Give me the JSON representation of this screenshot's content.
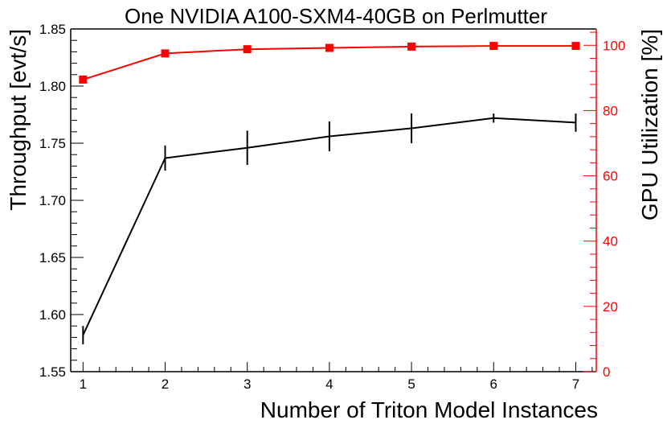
{
  "colors": {
    "throughput": "#000000",
    "gpu_util": "#ff0000",
    "frame": "#000000",
    "background": "#ffffff"
  },
  "chart_data": {
    "type": "line",
    "title": "One NVIDIA A100-SXM4-40GB on Perlmutter",
    "xlabel": "Number of Triton Model Instances",
    "ylabel": "Throughput [evt/s]",
    "y2label": "GPU Utilization [%]",
    "x": [
      1,
      2,
      3,
      4,
      5,
      6,
      7
    ],
    "xlim": [
      0.85,
      7.25
    ],
    "ylim": [
      1.55,
      1.85
    ],
    "y2lim": [
      0,
      105
    ],
    "x_ticks": [
      "1",
      "2",
      "3",
      "4",
      "5",
      "6",
      "7"
    ],
    "y_ticks": [
      "1.55",
      "1.60",
      "1.65",
      "1.70",
      "1.75",
      "1.80",
      "1.85"
    ],
    "y2_ticks": [
      "0",
      "20",
      "40",
      "60",
      "80",
      "100"
    ],
    "series": [
      {
        "axis": "left",
        "color": "#000000",
        "marker": "none",
        "values": [
          1.582,
          1.737,
          1.746,
          1.756,
          1.763,
          1.772,
          1.768
        ],
        "errors": [
          0.008,
          0.011,
          0.015,
          0.013,
          0.013,
          0.004,
          0.008
        ]
      },
      {
        "axis": "right",
        "color": "#ff0000",
        "marker": "square",
        "values": [
          89.5,
          97.5,
          98.8,
          99.2,
          99.6,
          99.8,
          99.8
        ]
      }
    ],
    "grid": false,
    "legend": "none"
  }
}
